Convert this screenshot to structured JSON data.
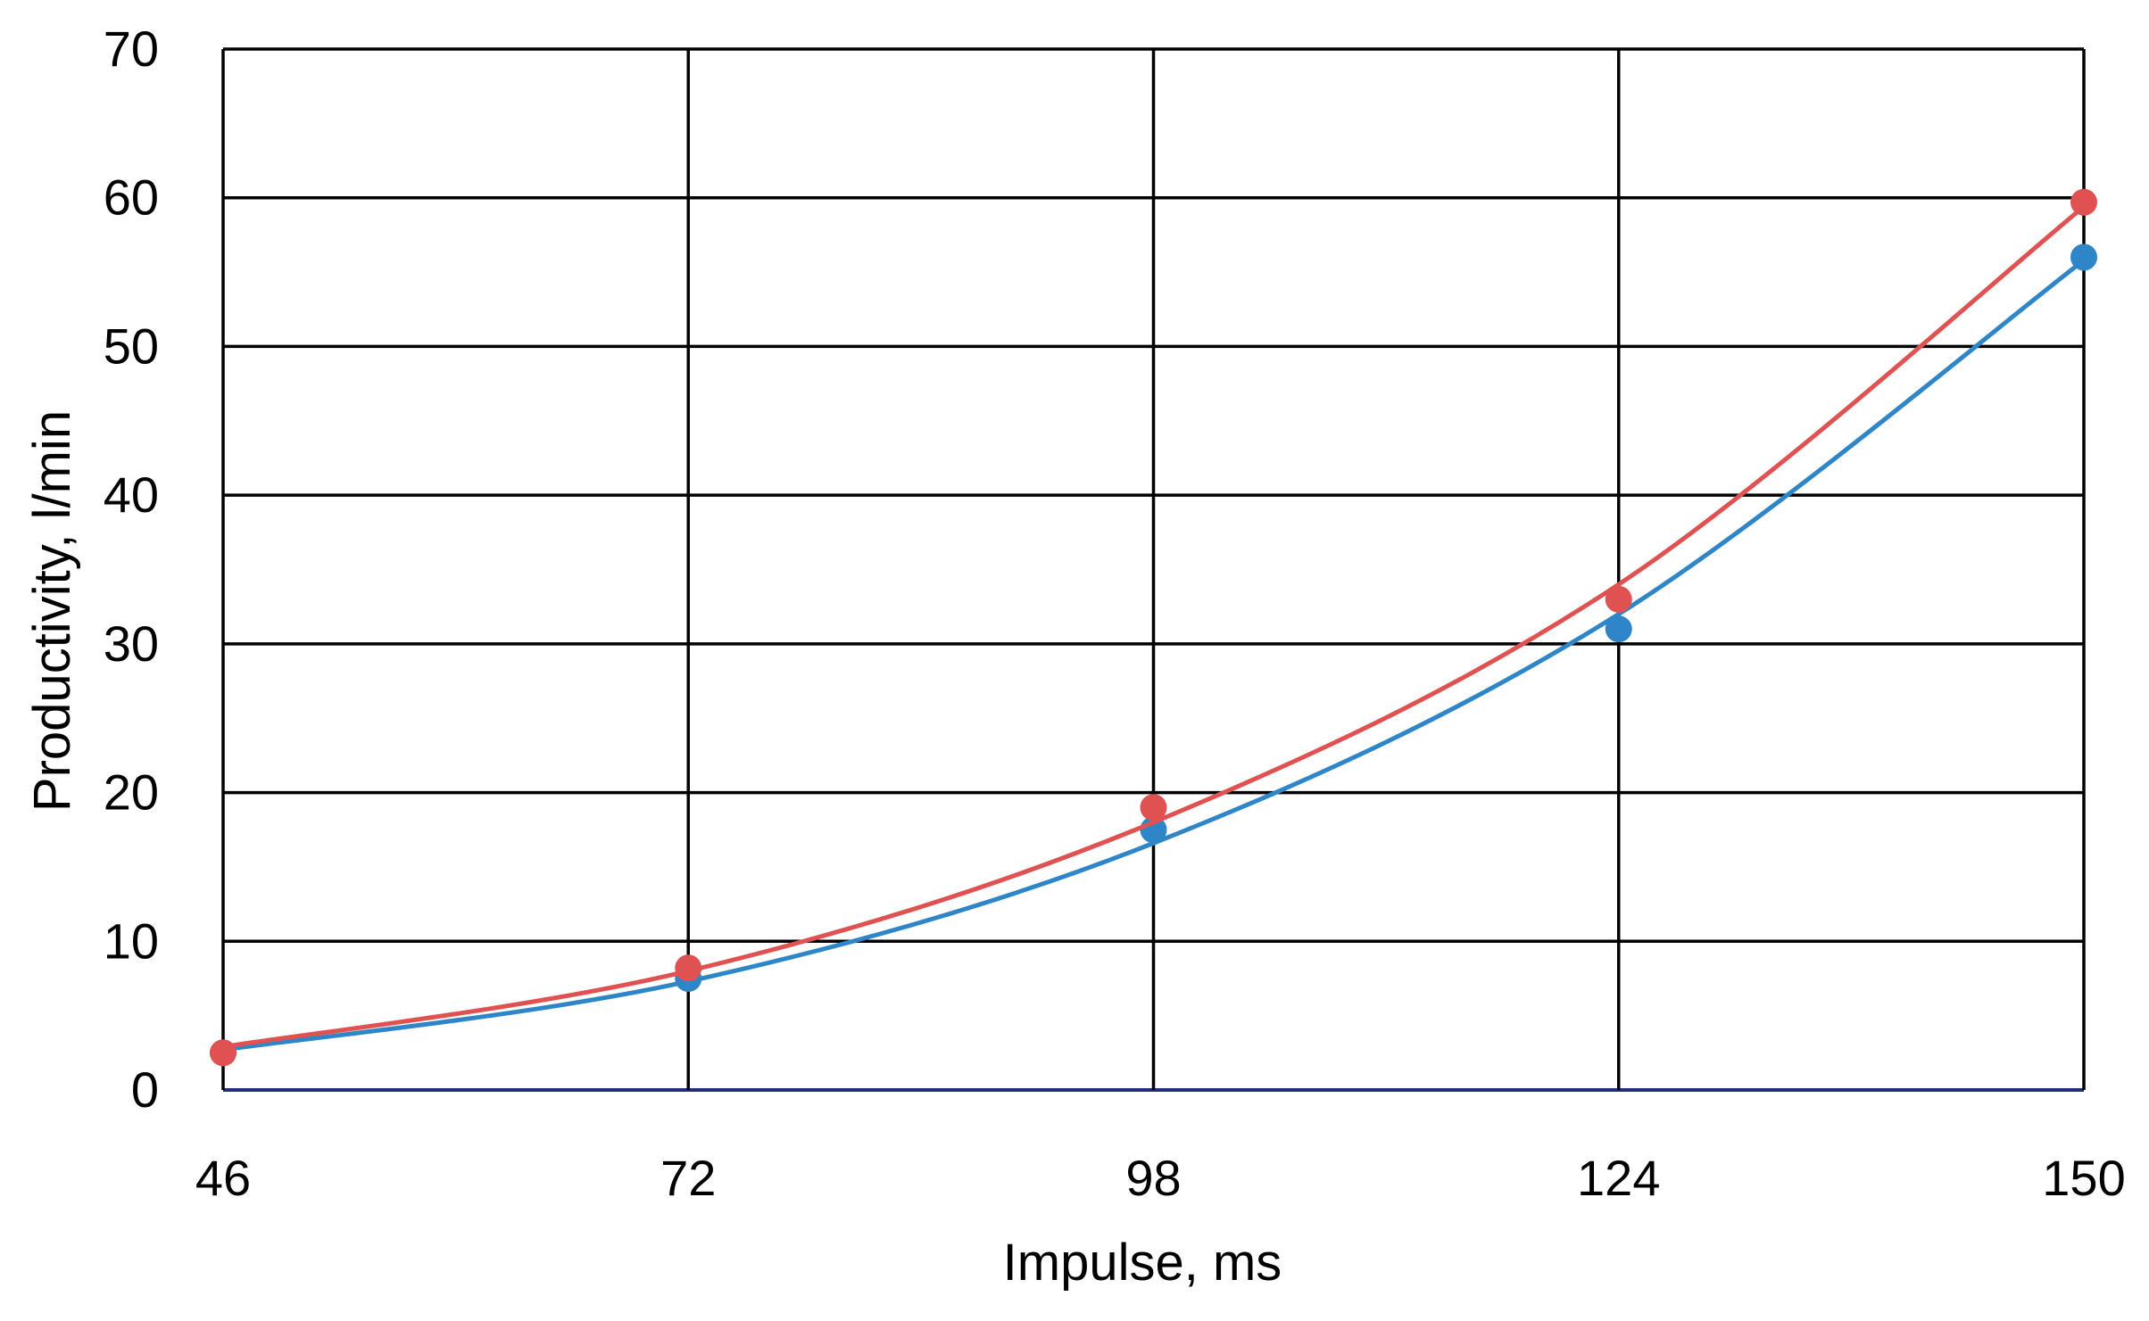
{
  "chart_data": {
    "type": "line",
    "title": "",
    "xlabel": "Impulse, ms",
    "ylabel": "Productivity, l/min",
    "x": [
      46,
      72,
      98,
      124,
      150
    ],
    "x_ticks": [
      "46",
      "72",
      "98",
      "124",
      "150"
    ],
    "y_ticks": [
      "0",
      "10",
      "20",
      "30",
      "40",
      "50",
      "60",
      "70"
    ],
    "xlim": [
      46,
      150
    ],
    "ylim": [
      0,
      70
    ],
    "grid": true,
    "legend": "none",
    "series": [
      {
        "color": "#2e86c8",
        "points": [
          2.5,
          7.5,
          17.5,
          31,
          56
        ],
        "trend": [
          2.7,
          7.3,
          16.6,
          32.0,
          55.8
        ]
      },
      {
        "color": "#e05252",
        "points": [
          2.5,
          8.2,
          19,
          33,
          59.7
        ],
        "trend": [
          2.9,
          8.0,
          18.0,
          34.0,
          59.4
        ]
      }
    ]
  }
}
